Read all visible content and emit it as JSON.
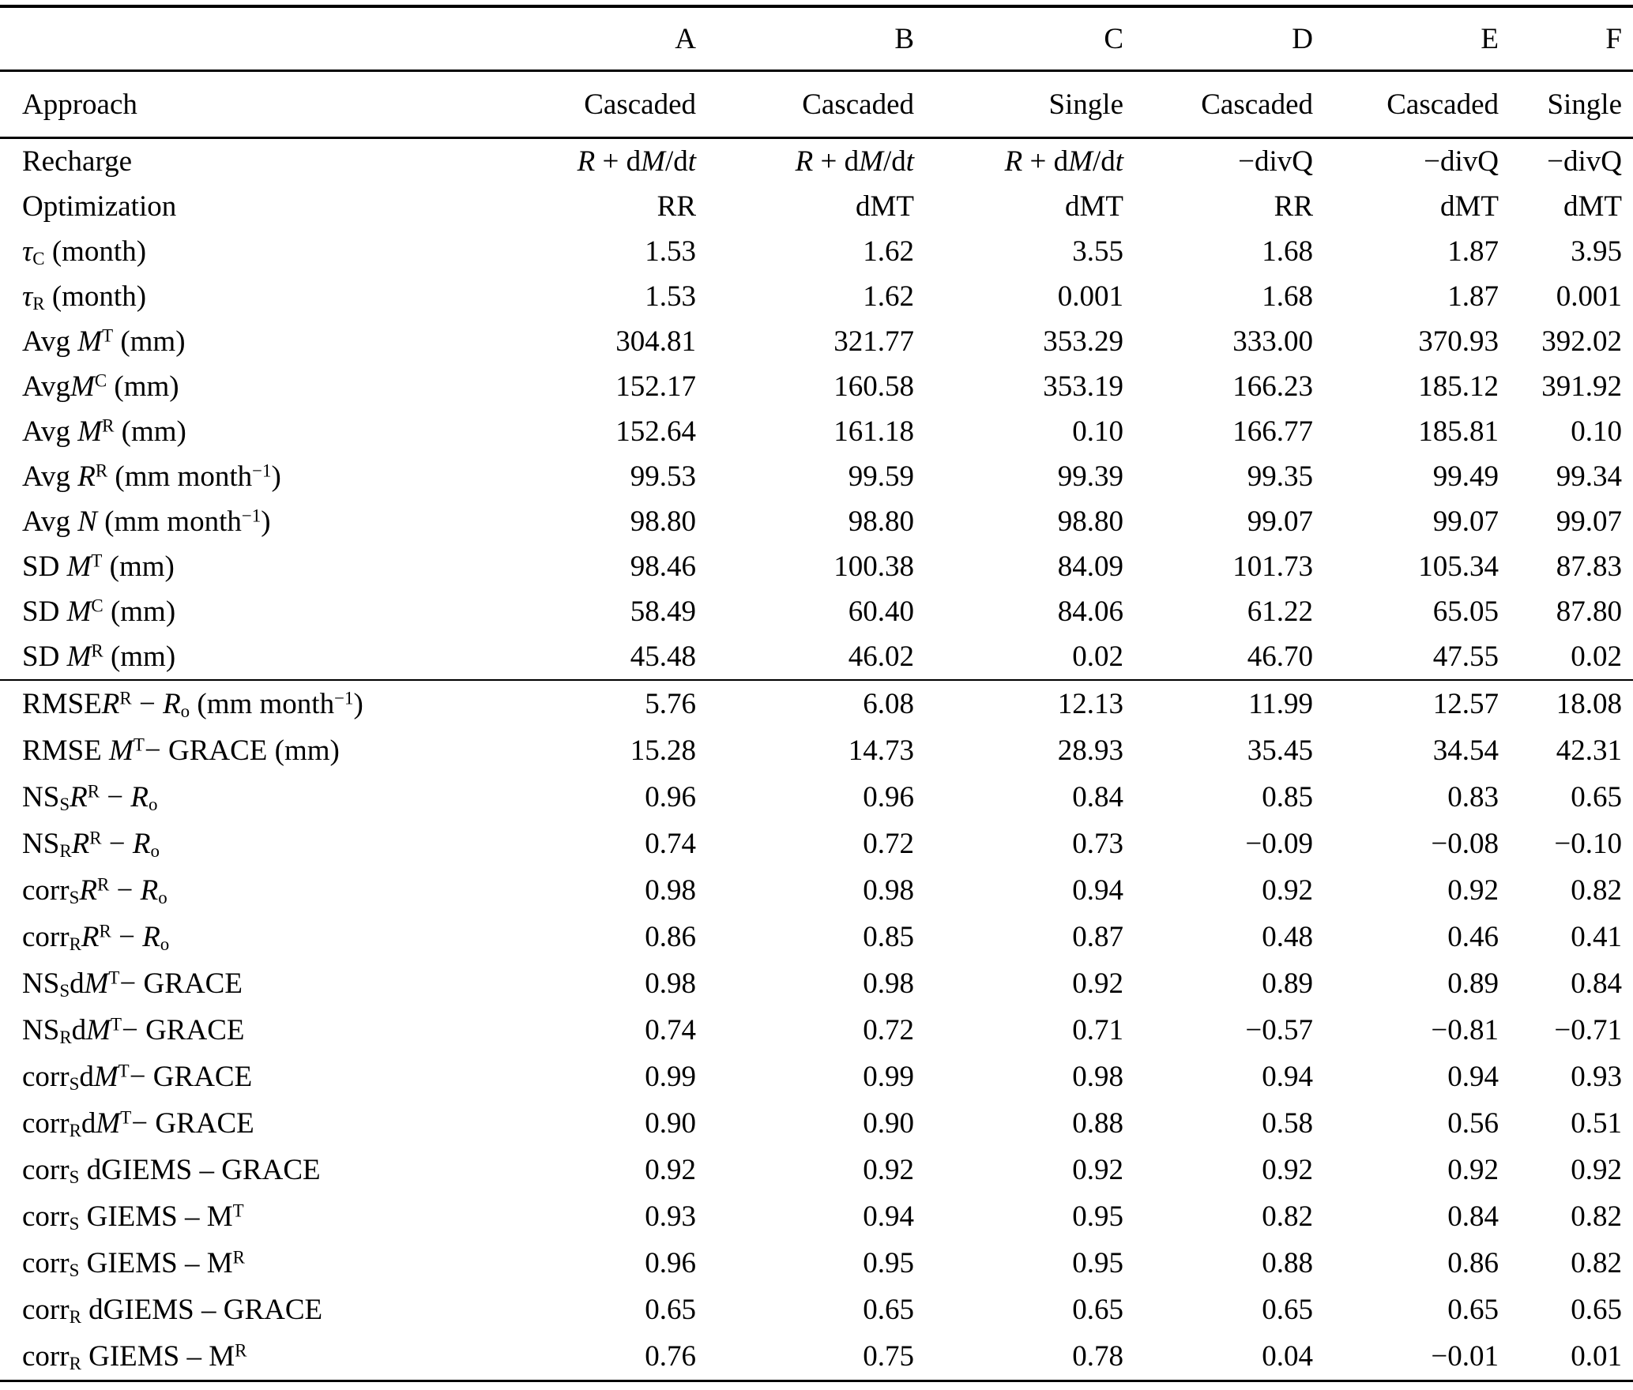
{
  "table": {
    "column_headers": [
      "A",
      "B",
      "C",
      "D",
      "E",
      "F"
    ],
    "approach": {
      "label": "Approach",
      "values": [
        "Cascaded",
        "Cascaded",
        "Single",
        "Cascaded",
        "Cascaded",
        "Single"
      ]
    },
    "section1": [
      {
        "label": "Recharge",
        "values": [
          "<i>R</i> + d<i>M</i>/d<i>t</i>",
          "<i>R</i> + d<i>M</i>/d<i>t</i>",
          "<i>R</i> + d<i>M</i>/d<i>t</i>",
          "−divQ",
          "−divQ",
          "−divQ"
        ]
      },
      {
        "label": "Optimization",
        "values": [
          "RR",
          "dMT",
          "dMT",
          "RR",
          "dMT",
          "dMT"
        ]
      },
      {
        "label": "<i>τ</i><sub>C</sub> (month)",
        "values": [
          "1.53",
          "1.62",
          "3.55",
          "1.68",
          "1.87",
          "3.95"
        ]
      },
      {
        "label": "<i>τ</i><sub>R</sub> (month)",
        "values": [
          "1.53",
          "1.62",
          "0.001",
          "1.68",
          "1.87",
          "0.001"
        ]
      },
      {
        "label": "Avg <i>M</i><sup>T</sup> (mm)",
        "values": [
          "304.81",
          "321.77",
          "353.29",
          "333.00",
          "370.93",
          "392.02"
        ]
      },
      {
        "label": "Avg<i>M</i><sup>C</sup> (mm)",
        "values": [
          "152.17",
          "160.58",
          "353.19",
          "166.23",
          "185.12",
          "391.92"
        ]
      },
      {
        "label": "Avg <i>M</i><sup>R</sup> (mm)",
        "values": [
          "152.64",
          "161.18",
          "0.10",
          "166.77",
          "185.81",
          "0.10"
        ]
      },
      {
        "label": "Avg <i>R</i><sup>R</sup> (mm month<sup>−1</sup>)",
        "values": [
          "99.53",
          "99.59",
          "99.39",
          "99.35",
          "99.49",
          "99.34"
        ]
      },
      {
        "label": "Avg <i>N</i> (mm month<sup>−1</sup>)",
        "values": [
          "98.80",
          "98.80",
          "98.80",
          "99.07",
          "99.07",
          "99.07"
        ]
      },
      {
        "label": "SD <i>M</i><sup>T</sup> (mm)",
        "values": [
          "98.46",
          "100.38",
          "84.09",
          "101.73",
          "105.34",
          "87.83"
        ]
      },
      {
        "label": "SD <i>M</i><sup>C</sup> (mm)",
        "values": [
          "58.49",
          "60.40",
          "84.06",
          "61.22",
          "65.05",
          "87.80"
        ]
      },
      {
        "label": "SD <i>M</i><sup>R</sup> (mm)",
        "values": [
          "45.48",
          "46.02",
          "0.02",
          "46.70",
          "47.55",
          "0.02"
        ]
      }
    ],
    "section2": [
      {
        "label": "RMSE<i>R</i><sup>R</sup> − <i>R</i><sub>o</sub> (mm month<sup>−1</sup>)",
        "values": [
          "5.76",
          "6.08",
          "12.13",
          "11.99",
          "12.57",
          "18.08"
        ]
      },
      {
        "label": "RMSE <i>M</i><sup>T</sup>− GRACE (mm)",
        "values": [
          "15.28",
          "14.73",
          "28.93",
          "35.45",
          "34.54",
          "42.31"
        ]
      },
      {
        "label": "NS<sub>S</sub><i>R</i><sup>R</sup> − <i>R</i><sub>o</sub>",
        "values": [
          "0.96",
          "0.96",
          "0.84",
          "0.85",
          "0.83",
          "0.65"
        ]
      },
      {
        "label": "NS<sub>R</sub><i>R</i><sup>R</sup> − <i>R</i><sub>o</sub>",
        "values": [
          "0.74",
          "0.72",
          "0.73",
          "−0.09",
          "−0.08",
          "−0.10"
        ]
      },
      {
        "label": "corr<sub>S</sub><i>R</i><sup>R</sup> − <i>R</i><sub>o</sub>",
        "values": [
          "0.98",
          "0.98",
          "0.94",
          "0.92",
          "0.92",
          "0.82"
        ]
      },
      {
        "label": "corr<sub>R</sub><i>R</i><sup>R</sup> − <i>R</i><sub>o</sub>",
        "values": [
          "0.86",
          "0.85",
          "0.87",
          "0.48",
          "0.46",
          "0.41"
        ]
      },
      {
        "label": "NS<sub>S</sub>d<i>M</i><sup>T</sup>− GRACE",
        "values": [
          "0.98",
          "0.98",
          "0.92",
          "0.89",
          "0.89",
          "0.84"
        ]
      },
      {
        "label": "NS<sub>R</sub>d<i>M</i><sup>T</sup>− GRACE",
        "values": [
          "0.74",
          "0.72",
          "0.71",
          "−0.57",
          "−0.81",
          "−0.71"
        ]
      },
      {
        "label": "corr<sub>S</sub>d<i>M</i><sup>T</sup>− GRACE",
        "values": [
          "0.99",
          "0.99",
          "0.98",
          "0.94",
          "0.94",
          "0.93"
        ]
      },
      {
        "label": "corr<sub>R</sub>d<i>M</i><sup>T</sup>− GRACE",
        "values": [
          "0.90",
          "0.90",
          "0.88",
          "0.58",
          "0.56",
          "0.51"
        ]
      },
      {
        "label": "corr<sub>S</sub> dGIEMS – GRACE",
        "values": [
          "0.92",
          "0.92",
          "0.92",
          "0.92",
          "0.92",
          "0.92"
        ]
      },
      {
        "label": "corr<sub>S</sub> GIEMS – M<sup>T</sup>",
        "values": [
          "0.93",
          "0.94",
          "0.95",
          "0.82",
          "0.84",
          "0.82"
        ]
      },
      {
        "label": "corr<sub>S</sub> GIEMS – M<sup>R</sup>",
        "values": [
          "0.96",
          "0.95",
          "0.95",
          "0.88",
          "0.86",
          "0.82"
        ]
      },
      {
        "label": "corr<sub>R</sub> dGIEMS – GRACE",
        "values": [
          "0.65",
          "0.65",
          "0.65",
          "0.65",
          "0.65",
          "0.65"
        ]
      },
      {
        "label": "corr<sub>R</sub> GIEMS – M<sup>R</sup>",
        "values": [
          "0.76",
          "0.75",
          "0.78",
          "0.04",
          "−0.01",
          "0.01"
        ]
      }
    ]
  }
}
